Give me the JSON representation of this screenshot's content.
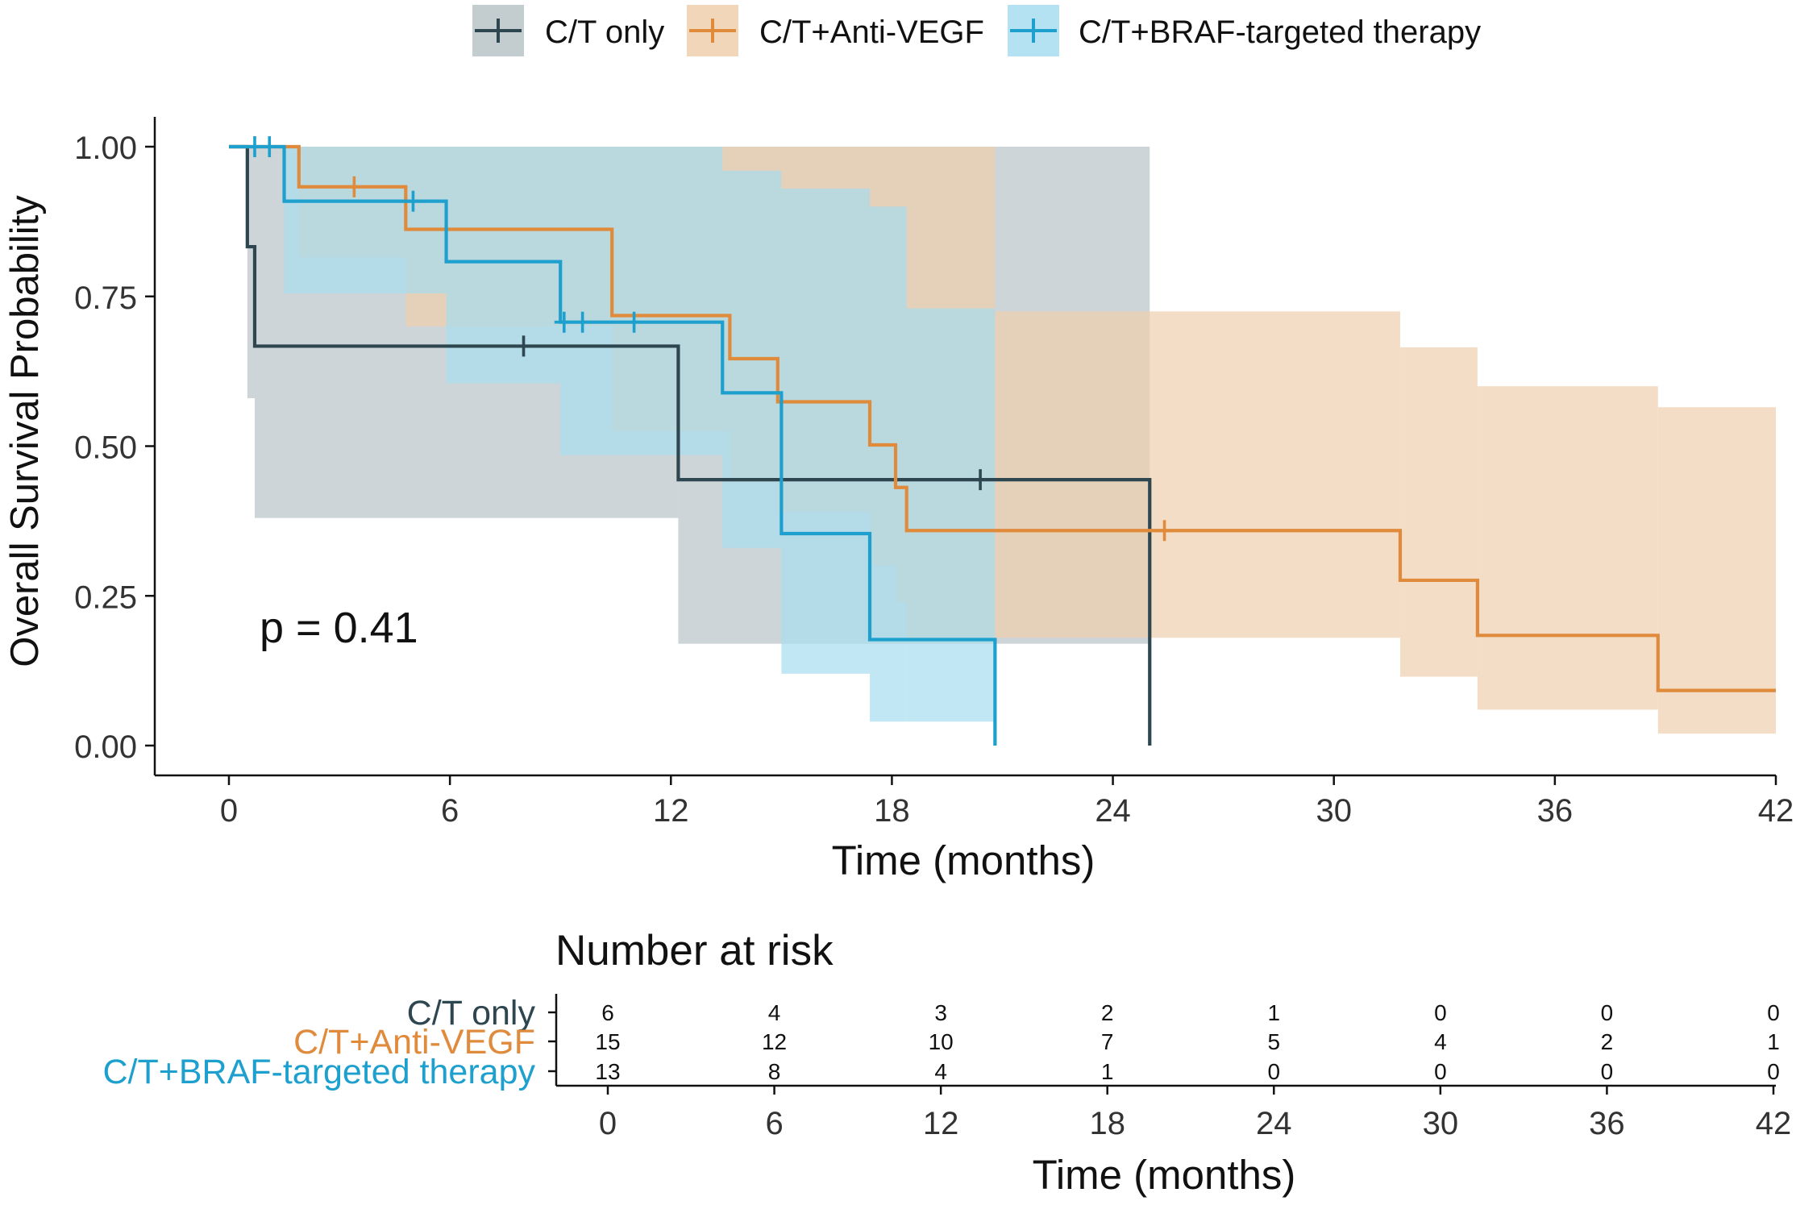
{
  "chart_data": [
    {
      "type": "line",
      "subtype": "kaplan-meier",
      "title": "",
      "xlabel": "Time (months)",
      "ylabel": "Overall Survival Probability",
      "xlim": [
        0,
        42
      ],
      "ylim": [
        0,
        1
      ],
      "xticks": [
        0,
        6,
        12,
        18,
        24,
        30,
        36,
        42
      ],
      "yticks": [
        0,
        0.25,
        0.5,
        0.75,
        1.0
      ],
      "ytick_labels": [
        "0.00",
        "0.25",
        "0.50",
        "0.75",
        "1.00"
      ],
      "grid": false,
      "legend_position": "top",
      "annotation": "p = 0.41",
      "series": [
        {
          "name": "C/T only",
          "color": "#2E464F",
          "band_color": "#B9C3C7",
          "steps": [
            [
              0,
              1.0
            ],
            [
              0.5,
              0.833
            ],
            [
              0.7,
              0.667
            ],
            [
              12.2,
              0.444
            ],
            [
              25.0,
              0.0
            ]
          ],
          "censor": [
            [
              8.0,
              0.667
            ],
            [
              20.4,
              0.444
            ]
          ],
          "ci": [
            [
              0,
              1.0,
              1.0
            ],
            [
              0.5,
              1.0,
              0.58
            ],
            [
              0.7,
              1.0,
              0.38
            ],
            [
              12.2,
              1.0,
              0.17
            ],
            [
              25.0,
              1.0,
              0.17
            ]
          ],
          "end": 25.0
        },
        {
          "name": "C/T+Anti-VEGF",
          "color": "#E08A3C",
          "band_color": "#F0CFAE",
          "steps": [
            [
              0,
              1.0
            ],
            [
              1.9,
              0.933
            ],
            [
              4.8,
              0.862
            ],
            [
              10.4,
              0.718
            ],
            [
              13.6,
              0.646
            ],
            [
              14.9,
              0.574
            ],
            [
              17.4,
              0.502
            ],
            [
              18.1,
              0.431
            ],
            [
              18.4,
              0.359
            ],
            [
              31.8,
              0.276
            ],
            [
              33.9,
              0.184
            ],
            [
              38.8,
              0.092
            ],
            [
              42,
              0.092
            ]
          ],
          "censor": [
            [
              3.4,
              0.933
            ],
            [
              25.4,
              0.359
            ]
          ],
          "ci": [
            [
              0,
              1.0,
              1.0
            ],
            [
              1.9,
              1.0,
              0.815
            ],
            [
              4.8,
              1.0,
              0.7
            ],
            [
              10.4,
              1.0,
              0.525
            ],
            [
              13.6,
              1.0,
              0.44
            ],
            [
              14.9,
              1.0,
              0.39
            ],
            [
              17.4,
              1.0,
              0.3
            ],
            [
              18.1,
              1.0,
              0.24
            ],
            [
              18.4,
              1.0,
              0.18
            ],
            [
              20.8,
              0.725,
              0.18
            ],
            [
              31.8,
              0.665,
              0.115
            ],
            [
              33.9,
              0.6,
              0.06
            ],
            [
              38.8,
              0.565,
              0.02
            ],
            [
              42,
              0.565,
              0.02
            ]
          ],
          "end": 42
        },
        {
          "name": "C/T+BRAF-targeted therapy",
          "color": "#1EA0CE",
          "band_color": "#A8DDF0",
          "steps": [
            [
              0,
              1.0
            ],
            [
              1.5,
              0.909
            ],
            [
              5.9,
              0.808
            ],
            [
              9.0,
              0.707
            ],
            [
              13.4,
              0.589
            ],
            [
              15.0,
              0.354
            ],
            [
              17.4,
              0.177
            ],
            [
              20.8,
              0.0
            ]
          ],
          "censor": [
            [
              0.7,
              1.0
            ],
            [
              1.1,
              1.0
            ],
            [
              5.0,
              0.909
            ],
            [
              9.1,
              0.707
            ],
            [
              9.6,
              0.707
            ],
            [
              11.0,
              0.707
            ]
          ],
          "ci": [
            [
              0,
              1.0,
              1.0
            ],
            [
              1.5,
              1.0,
              0.755
            ],
            [
              5.9,
              1.0,
              0.605
            ],
            [
              9.0,
              1.0,
              0.485
            ],
            [
              13.4,
              0.96,
              0.33
            ],
            [
              15.0,
              0.93,
              0.12
            ],
            [
              17.4,
              0.9,
              0.04
            ],
            [
              18.4,
              0.73,
              0.04
            ],
            [
              20.8,
              0.73,
              0.04
            ]
          ],
          "end": 20.8
        }
      ]
    },
    {
      "type": "table",
      "title": "Number at risk",
      "xlabel": "Time (months)",
      "times": [
        0,
        6,
        12,
        18,
        24,
        30,
        36,
        42
      ],
      "rows": [
        {
          "name": "C/T only",
          "color": "#2E464F",
          "values": [
            6,
            4,
            3,
            2,
            1,
            0,
            0,
            0
          ]
        },
        {
          "name": "C/T+Anti-VEGF",
          "color": "#E08A3C",
          "values": [
            15,
            12,
            10,
            7,
            5,
            4,
            2,
            1
          ]
        },
        {
          "name": "C/T+BRAF-targeted therapy",
          "color": "#1EA0CE",
          "values": [
            13,
            8,
            4,
            1,
            0,
            0,
            0,
            0
          ]
        }
      ]
    }
  ]
}
